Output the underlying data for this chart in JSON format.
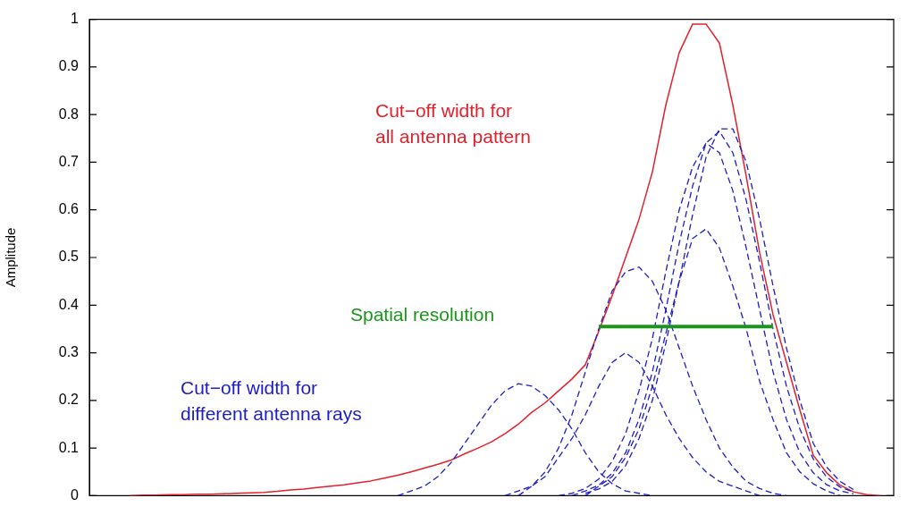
{
  "chart_data": {
    "type": "line",
    "ylabel": "Amplitude",
    "categories": [
      null,
      null,
      null,
      null,
      null,
      null,
      null,
      null,
      null,
      null,
      null,
      null,
      null,
      null,
      null,
      null,
      null,
      null,
      null,
      null,
      null,
      null,
      null,
      null,
      null,
      null,
      null,
      null,
      null,
      null,
      null,
      null,
      null,
      null,
      null,
      null,
      null,
      null,
      null,
      null,
      null,
      null,
      null,
      null,
      null,
      null,
      null,
      null,
      null,
      null,
      null,
      null,
      null,
      null,
      null,
      null,
      null,
      null,
      null,
      null,
      null
    ],
    "series": [
      {
        "color": "#e3202c",
        "line_style": "solid",
        "values": [
          null,
          null,
          null,
          0,
          0.001,
          0.001,
          0.002,
          0.002,
          0.003,
          0.003,
          0.004,
          0.005,
          0.006,
          0.007,
          0.009,
          0.012,
          0.014,
          0.017,
          0.02,
          0.023,
          0.027,
          0.031,
          0.037,
          0.043,
          0.05,
          0.058,
          0.066,
          0.075,
          0.088,
          0.1,
          0.113,
          0.13,
          0.15,
          0.175,
          0.195,
          0.22,
          0.245,
          0.275,
          0.345,
          0.42,
          0.5,
          0.58,
          0.68,
          0.82,
          0.93,
          0.99,
          0.99,
          0.95,
          0.82,
          0.67,
          0.51,
          0.38,
          0.28,
          0.18,
          0.085,
          0.048,
          0.022,
          0.008,
          0.002,
          0,
          null
        ]
      },
      {
        "color": "#1c1cc8",
        "line_style": "dashed",
        "values": [
          null,
          null,
          null,
          null,
          null,
          null,
          null,
          null,
          null,
          null,
          null,
          null,
          null,
          null,
          null,
          null,
          null,
          null,
          null,
          null,
          null,
          null,
          null,
          0,
          0.01,
          0.02,
          0.04,
          0.07,
          0.11,
          0.15,
          0.19,
          0.22,
          0.235,
          0.23,
          0.21,
          0.18,
          0.14,
          0.09,
          0.05,
          0.025,
          0.01,
          0.005,
          0,
          null,
          null,
          null,
          null,
          null,
          null,
          null,
          null,
          null,
          null,
          null,
          null,
          null,
          null,
          null,
          null,
          null,
          null
        ]
      },
      {
        "color": "#1c1cc8",
        "line_style": "dashed",
        "values": [
          null,
          null,
          null,
          null,
          null,
          null,
          null,
          null,
          null,
          null,
          null,
          null,
          null,
          null,
          null,
          null,
          null,
          null,
          null,
          null,
          null,
          null,
          null,
          null,
          null,
          null,
          null,
          null,
          null,
          null,
          null,
          0,
          0.01,
          0.02,
          0.04,
          0.08,
          0.12,
          0.17,
          0.23,
          0.28,
          0.3,
          0.28,
          0.23,
          0.17,
          0.12,
          0.08,
          0.05,
          0.03,
          0.02,
          0.01,
          0,
          null,
          null,
          null,
          null,
          null,
          null,
          null,
          null,
          null,
          null
        ]
      },
      {
        "color": "#1c1cc8",
        "line_style": "dashed",
        "values": [
          null,
          null,
          null,
          null,
          null,
          null,
          null,
          null,
          null,
          null,
          null,
          null,
          null,
          null,
          null,
          null,
          null,
          null,
          null,
          null,
          null,
          null,
          null,
          null,
          null,
          null,
          null,
          null,
          null,
          null,
          null,
          null,
          0,
          0.02,
          0.05,
          0.1,
          0.17,
          0.26,
          0.35,
          0.43,
          0.47,
          0.48,
          0.45,
          0.39,
          0.31,
          0.23,
          0.16,
          0.1,
          0.06,
          0.03,
          0.015,
          0.005,
          0,
          null,
          null,
          null,
          null,
          null,
          null,
          null,
          null
        ]
      },
      {
        "color": "#1c1cc8",
        "line_style": "dashed",
        "values": [
          null,
          null,
          null,
          null,
          null,
          null,
          null,
          null,
          null,
          null,
          null,
          null,
          null,
          null,
          null,
          null,
          null,
          null,
          null,
          null,
          null,
          null,
          null,
          null,
          null,
          null,
          null,
          null,
          null,
          null,
          null,
          null,
          null,
          null,
          null,
          null,
          null,
          0,
          0.02,
          0.04,
          0.08,
          0.14,
          0.23,
          0.34,
          0.45,
          0.54,
          0.56,
          0.52,
          0.44,
          0.35,
          0.24,
          0.16,
          0.09,
          0.05,
          0.025,
          0.01,
          0,
          null,
          null,
          null,
          null
        ]
      },
      {
        "color": "#1c1cc8",
        "line_style": "dashed",
        "values": [
          null,
          null,
          null,
          null,
          null,
          null,
          null,
          null,
          null,
          null,
          null,
          null,
          null,
          null,
          null,
          null,
          null,
          null,
          null,
          null,
          null,
          null,
          null,
          null,
          null,
          null,
          null,
          null,
          null,
          null,
          null,
          null,
          null,
          null,
          null,
          0,
          0.005,
          0.015,
          0.035,
          0.072,
          0.13,
          0.22,
          0.33,
          0.47,
          0.6,
          0.69,
          0.74,
          0.72,
          0.64,
          0.52,
          0.39,
          0.26,
          0.16,
          0.09,
          0.048,
          0.023,
          0.01,
          0.004,
          null,
          null,
          null
        ]
      },
      {
        "color": "#1c1cc8",
        "line_style": "dashed",
        "values": [
          null,
          null,
          null,
          null,
          null,
          null,
          null,
          null,
          null,
          null,
          null,
          null,
          null,
          null,
          null,
          null,
          null,
          null,
          null,
          null,
          null,
          null,
          null,
          null,
          null,
          null,
          null,
          null,
          null,
          null,
          null,
          null,
          null,
          null,
          null,
          null,
          0,
          0.01,
          0.022,
          0.047,
          0.09,
          0.16,
          0.26,
          0.39,
          0.53,
          0.65,
          0.74,
          0.765,
          0.72,
          0.62,
          0.49,
          0.35,
          0.23,
          0.14,
          0.077,
          0.039,
          0.018,
          0.008,
          null,
          null,
          null
        ]
      },
      {
        "color": "#1c1cc8",
        "line_style": "dashed",
        "values": [
          null,
          null,
          null,
          null,
          null,
          null,
          null,
          null,
          null,
          null,
          null,
          null,
          null,
          null,
          null,
          null,
          null,
          null,
          null,
          null,
          null,
          null,
          null,
          null,
          null,
          null,
          null,
          null,
          null,
          null,
          null,
          null,
          null,
          null,
          null,
          null,
          null,
          0.005,
          0.014,
          0.03,
          0.063,
          0.12,
          0.2,
          0.32,
          0.45,
          0.59,
          0.71,
          0.77,
          0.77,
          0.7,
          0.58,
          0.44,
          0.31,
          0.2,
          0.11,
          0.06,
          0.03,
          0.013,
          null,
          null,
          null
        ]
      },
      {
        "color": "#1a961a",
        "line_style": "solid",
        "values": [
          null,
          null,
          null,
          null,
          null,
          null,
          null,
          null,
          null,
          null,
          null,
          null,
          null,
          null,
          null,
          null,
          null,
          null,
          null,
          null,
          null,
          null,
          null,
          null,
          null,
          null,
          null,
          null,
          null,
          null,
          null,
          null,
          null,
          null,
          null,
          null,
          null,
          null,
          0.355,
          null,
          null,
          null,
          null,
          null,
          null,
          null,
          null,
          null,
          null,
          null,
          null,
          0.355,
          null,
          null,
          null,
          null,
          null,
          null,
          null,
          null,
          null
        ]
      }
    ],
    "ylim": [
      0,
      1
    ],
    "yticks": [
      0,
      0.1,
      0.2,
      0.3,
      0.4,
      0.5,
      0.6,
      0.7,
      0.8,
      0.9,
      1
    ],
    "tick_labels": "y",
    "grid": false,
    "legend": false,
    "marker": "none",
    "annotations": [
      "Cut−off width for\nall antenna pattern",
      "Spatial resolution",
      "Cut−off width for\ndifferent antenna rays"
    ]
  }
}
